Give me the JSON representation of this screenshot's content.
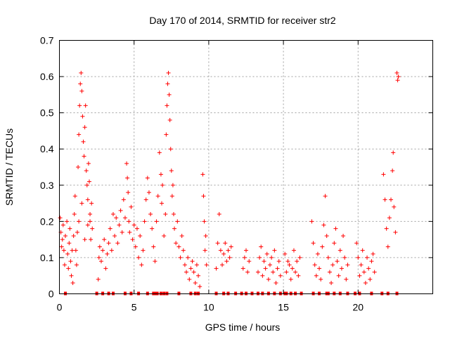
{
  "chart_data": {
    "type": "scatter",
    "title": "Day 170 of 2014, SRMTID for receiver str2",
    "xlabel": "GPS time / hours",
    "ylabel": "SRMTID / TECUs",
    "xlim": [
      0,
      25
    ],
    "ylim": [
      0,
      0.7
    ],
    "x_ticks": [
      0,
      5,
      10,
      15,
      20
    ],
    "x_tick_labels": [
      "0",
      "5",
      "10",
      "15",
      "20"
    ],
    "y_ticks": [
      0,
      0.1,
      0.2,
      0.3,
      0.4,
      0.5,
      0.6,
      0.7
    ],
    "y_tick_labels": [
      "0",
      "0.1",
      "0.2",
      "0.3",
      "0.4",
      "0.5",
      "0.6",
      "0.7"
    ],
    "grid": true,
    "marker": "plus",
    "color": "#ff0000",
    "series": [
      {
        "name": "SRMTID",
        "points": [
          [
            0.05,
            0.21
          ],
          [
            0.1,
            0.17
          ],
          [
            0.15,
            0.13
          ],
          [
            0.2,
            0.15
          ],
          [
            0.25,
            0.19
          ],
          [
            0.3,
            0.12
          ],
          [
            0.35,
            0.08
          ],
          [
            0.4,
            0.16
          ],
          [
            0.5,
            0.2
          ],
          [
            0.55,
            0.11
          ],
          [
            0.6,
            0.07
          ],
          [
            0.65,
            0.14
          ],
          [
            0.7,
            0.18
          ],
          [
            0.75,
            0.09
          ],
          [
            0.8,
            0.05
          ],
          [
            0.85,
            0.12
          ],
          [
            0.9,
            0.03
          ],
          [
            0.95,
            0.16
          ],
          [
            1.0,
            0.22
          ],
          [
            1.05,
            0.27
          ],
          [
            1.1,
            0.12
          ],
          [
            1.15,
            0.08
          ],
          [
            1.2,
            0.17
          ],
          [
            1.25,
            0.35
          ],
          [
            1.3,
            0.44
          ],
          [
            1.35,
            0.52
          ],
          [
            1.4,
            0.58
          ],
          [
            1.45,
            0.61
          ],
          [
            1.5,
            0.56
          ],
          [
            1.55,
            0.49
          ],
          [
            1.6,
            0.42
          ],
          [
            1.65,
            0.38
          ],
          [
            1.7,
            0.46
          ],
          [
            1.75,
            0.52
          ],
          [
            1.8,
            0.34
          ],
          [
            1.85,
            0.3
          ],
          [
            1.9,
            0.26
          ],
          [
            1.95,
            0.36
          ],
          [
            2.0,
            0.31
          ],
          [
            2.05,
            0.2
          ],
          [
            2.1,
            0.15
          ],
          [
            2.15,
            0.25
          ],
          [
            2.2,
            0.18
          ],
          [
            1.3,
            0.2
          ],
          [
            1.5,
            0.25
          ],
          [
            1.7,
            0.15
          ],
          [
            1.9,
            0.19
          ],
          [
            2.05,
            0.22
          ],
          [
            2.6,
            0.04
          ],
          [
            2.65,
            0.1
          ],
          [
            2.7,
            0.13
          ],
          [
            2.8,
            0.09
          ],
          [
            2.9,
            0.12
          ],
          [
            3.0,
            0.15
          ],
          [
            3.1,
            0.07
          ],
          [
            3.2,
            0.11
          ],
          [
            3.3,
            0.14
          ],
          [
            3.4,
            0.18
          ],
          [
            3.5,
            0.12
          ],
          [
            3.6,
            0.22
          ],
          [
            3.7,
            0.16
          ],
          [
            3.8,
            0.21
          ],
          [
            3.9,
            0.14
          ],
          [
            4.0,
            0.19
          ],
          [
            4.1,
            0.23
          ],
          [
            4.2,
            0.17
          ],
          [
            4.3,
            0.26
          ],
          [
            4.4,
            0.21
          ],
          [
            4.5,
            0.36
          ],
          [
            4.55,
            0.32
          ],
          [
            4.6,
            0.28
          ],
          [
            4.65,
            0.2
          ],
          [
            4.7,
            0.17
          ],
          [
            4.8,
            0.24
          ],
          [
            4.9,
            0.15
          ],
          [
            5.0,
            0.19
          ],
          [
            5.1,
            0.13
          ],
          [
            5.2,
            0.18
          ],
          [
            5.3,
            0.1
          ],
          [
            5.4,
            0.16
          ],
          [
            5.5,
            0.08
          ],
          [
            5.6,
            0.12
          ],
          [
            5.7,
            0.2
          ],
          [
            5.8,
            0.26
          ],
          [
            5.9,
            0.32
          ],
          [
            6.0,
            0.28
          ],
          [
            6.1,
            0.22
          ],
          [
            6.2,
            0.18
          ],
          [
            6.3,
            0.13
          ],
          [
            6.4,
            0.09
          ],
          [
            6.5,
            0.2
          ],
          [
            6.6,
            0.27
          ],
          [
            6.7,
            0.39
          ],
          [
            6.8,
            0.33
          ],
          [
            6.85,
            0.25
          ],
          [
            6.9,
            0.3
          ],
          [
            7.0,
            0.16
          ],
          [
            7.1,
            0.22
          ],
          [
            7.15,
            0.44
          ],
          [
            7.2,
            0.52
          ],
          [
            7.25,
            0.58
          ],
          [
            7.3,
            0.61
          ],
          [
            7.35,
            0.55
          ],
          [
            7.4,
            0.48
          ],
          [
            7.45,
            0.4
          ],
          [
            7.5,
            0.34
          ],
          [
            7.55,
            0.27
          ],
          [
            7.6,
            0.3
          ],
          [
            7.65,
            0.22
          ],
          [
            7.7,
            0.18
          ],
          [
            7.8,
            0.14
          ],
          [
            7.9,
            0.2
          ],
          [
            8.0,
            0.13
          ],
          [
            8.1,
            0.1
          ],
          [
            8.2,
            0.16
          ],
          [
            8.3,
            0.12
          ],
          [
            8.4,
            0.08
          ],
          [
            8.5,
            0.06
          ],
          [
            8.6,
            0.1
          ],
          [
            8.7,
            0.04
          ],
          [
            8.8,
            0.07
          ],
          [
            8.9,
            0.09
          ],
          [
            9.0,
            0.06
          ],
          [
            9.1,
            0.03
          ],
          [
            9.2,
            0.08
          ],
          [
            9.3,
            0.05
          ],
          [
            9.4,
            0.02
          ],
          [
            9.6,
            0.33
          ],
          [
            9.65,
            0.27
          ],
          [
            9.7,
            0.2
          ],
          [
            9.75,
            0.12
          ],
          [
            9.8,
            0.16
          ],
          [
            9.85,
            0.08
          ],
          [
            10.5,
            0.07
          ],
          [
            10.6,
            0.14
          ],
          [
            10.7,
            0.22
          ],
          [
            10.8,
            0.12
          ],
          [
            10.9,
            0.08
          ],
          [
            11.0,
            0.11
          ],
          [
            11.1,
            0.14
          ],
          [
            11.2,
            0.09
          ],
          [
            11.3,
            0.12
          ],
          [
            11.4,
            0.1
          ],
          [
            11.5,
            0.13
          ],
          [
            12.3,
            0.07
          ],
          [
            12.4,
            0.1
          ],
          [
            12.5,
            0.12
          ],
          [
            12.6,
            0.06
          ],
          [
            12.7,
            0.09
          ],
          [
            13.3,
            0.06
          ],
          [
            13.4,
            0.1
          ],
          [
            13.5,
            0.13
          ],
          [
            13.6,
            0.05
          ],
          [
            13.7,
            0.09
          ],
          [
            13.8,
            0.07
          ],
          [
            13.9,
            0.11
          ],
          [
            14.0,
            0.04
          ],
          [
            14.1,
            0.08
          ],
          [
            14.2,
            0.1
          ],
          [
            14.3,
            0.06
          ],
          [
            14.4,
            0.12
          ],
          [
            14.5,
            0.03
          ],
          [
            14.6,
            0.07
          ],
          [
            14.7,
            0.09
          ],
          [
            14.8,
            0.05
          ],
          [
            15.1,
            0.11
          ],
          [
            15.2,
            0.06
          ],
          [
            15.3,
            0.09
          ],
          [
            15.4,
            0.08
          ],
          [
            15.5,
            0.04
          ],
          [
            15.6,
            0.07
          ],
          [
            15.7,
            0.12
          ],
          [
            15.8,
            0.06
          ],
          [
            15.9,
            0.09
          ],
          [
            16.0,
            0.05
          ],
          [
            16.1,
            0.1
          ],
          [
            16.9,
            0.2
          ],
          [
            17.0,
            0.14
          ],
          [
            17.1,
            0.08
          ],
          [
            17.2,
            0.05
          ],
          [
            17.3,
            0.11
          ],
          [
            17.4,
            0.07
          ],
          [
            17.5,
            0.04
          ],
          [
            17.6,
            0.13
          ],
          [
            17.7,
            0.19
          ],
          [
            17.8,
            0.27
          ],
          [
            17.9,
            0.16
          ],
          [
            18.0,
            0.1
          ],
          [
            18.1,
            0.06
          ],
          [
            18.2,
            0.03
          ],
          [
            18.3,
            0.08
          ],
          [
            18.4,
            0.14
          ],
          [
            18.5,
            0.18
          ],
          [
            18.6,
            0.09
          ],
          [
            18.7,
            0.05
          ],
          [
            18.8,
            0.12
          ],
          [
            18.9,
            0.07
          ],
          [
            19.0,
            0.16
          ],
          [
            19.1,
            0.1
          ],
          [
            19.2,
            0.04
          ],
          [
            19.3,
            0.08
          ],
          [
            19.9,
            0.14
          ],
          [
            20.0,
            0.1
          ],
          [
            20.1,
            0.05
          ],
          [
            20.2,
            0.08
          ],
          [
            20.3,
            0.12
          ],
          [
            20.4,
            0.06
          ],
          [
            20.5,
            0.03
          ],
          [
            20.6,
            0.1
          ],
          [
            20.7,
            0.07
          ],
          [
            20.8,
            0.04
          ],
          [
            20.9,
            0.09
          ],
          [
            21.0,
            0.11
          ],
          [
            21.1,
            0.06
          ],
          [
            21.7,
            0.33
          ],
          [
            21.8,
            0.26
          ],
          [
            21.9,
            0.18
          ],
          [
            22.0,
            0.13
          ],
          [
            22.1,
            0.21
          ],
          [
            22.2,
            0.26
          ],
          [
            22.3,
            0.34
          ],
          [
            22.35,
            0.39
          ],
          [
            22.4,
            0.24
          ],
          [
            22.5,
            0.17
          ],
          [
            22.6,
            0.61
          ],
          [
            22.65,
            0.59
          ],
          [
            22.7,
            0.6
          ]
        ]
      }
    ],
    "zero_points_x": [
      0.4,
      2.5,
      2.9,
      3.3,
      3.6,
      4.4,
      4.8,
      5.3,
      5.9,
      6.3,
      6.45,
      6.55,
      6.8,
      7.0,
      7.2,
      8.0,
      8.8,
      9.1,
      9.3,
      10.5,
      11.0,
      11.3,
      11.8,
      12.2,
      12.5,
      12.9,
      13.3,
      13.6,
      14.0,
      14.4,
      14.8,
      15.1,
      15.2,
      15.5,
      15.8,
      16.2,
      17.0,
      17.4,
      17.9,
      18.0,
      18.4,
      18.8,
      19.3,
      19.8,
      20.1,
      20.9,
      21.6,
      22.0,
      22.6
    ]
  }
}
